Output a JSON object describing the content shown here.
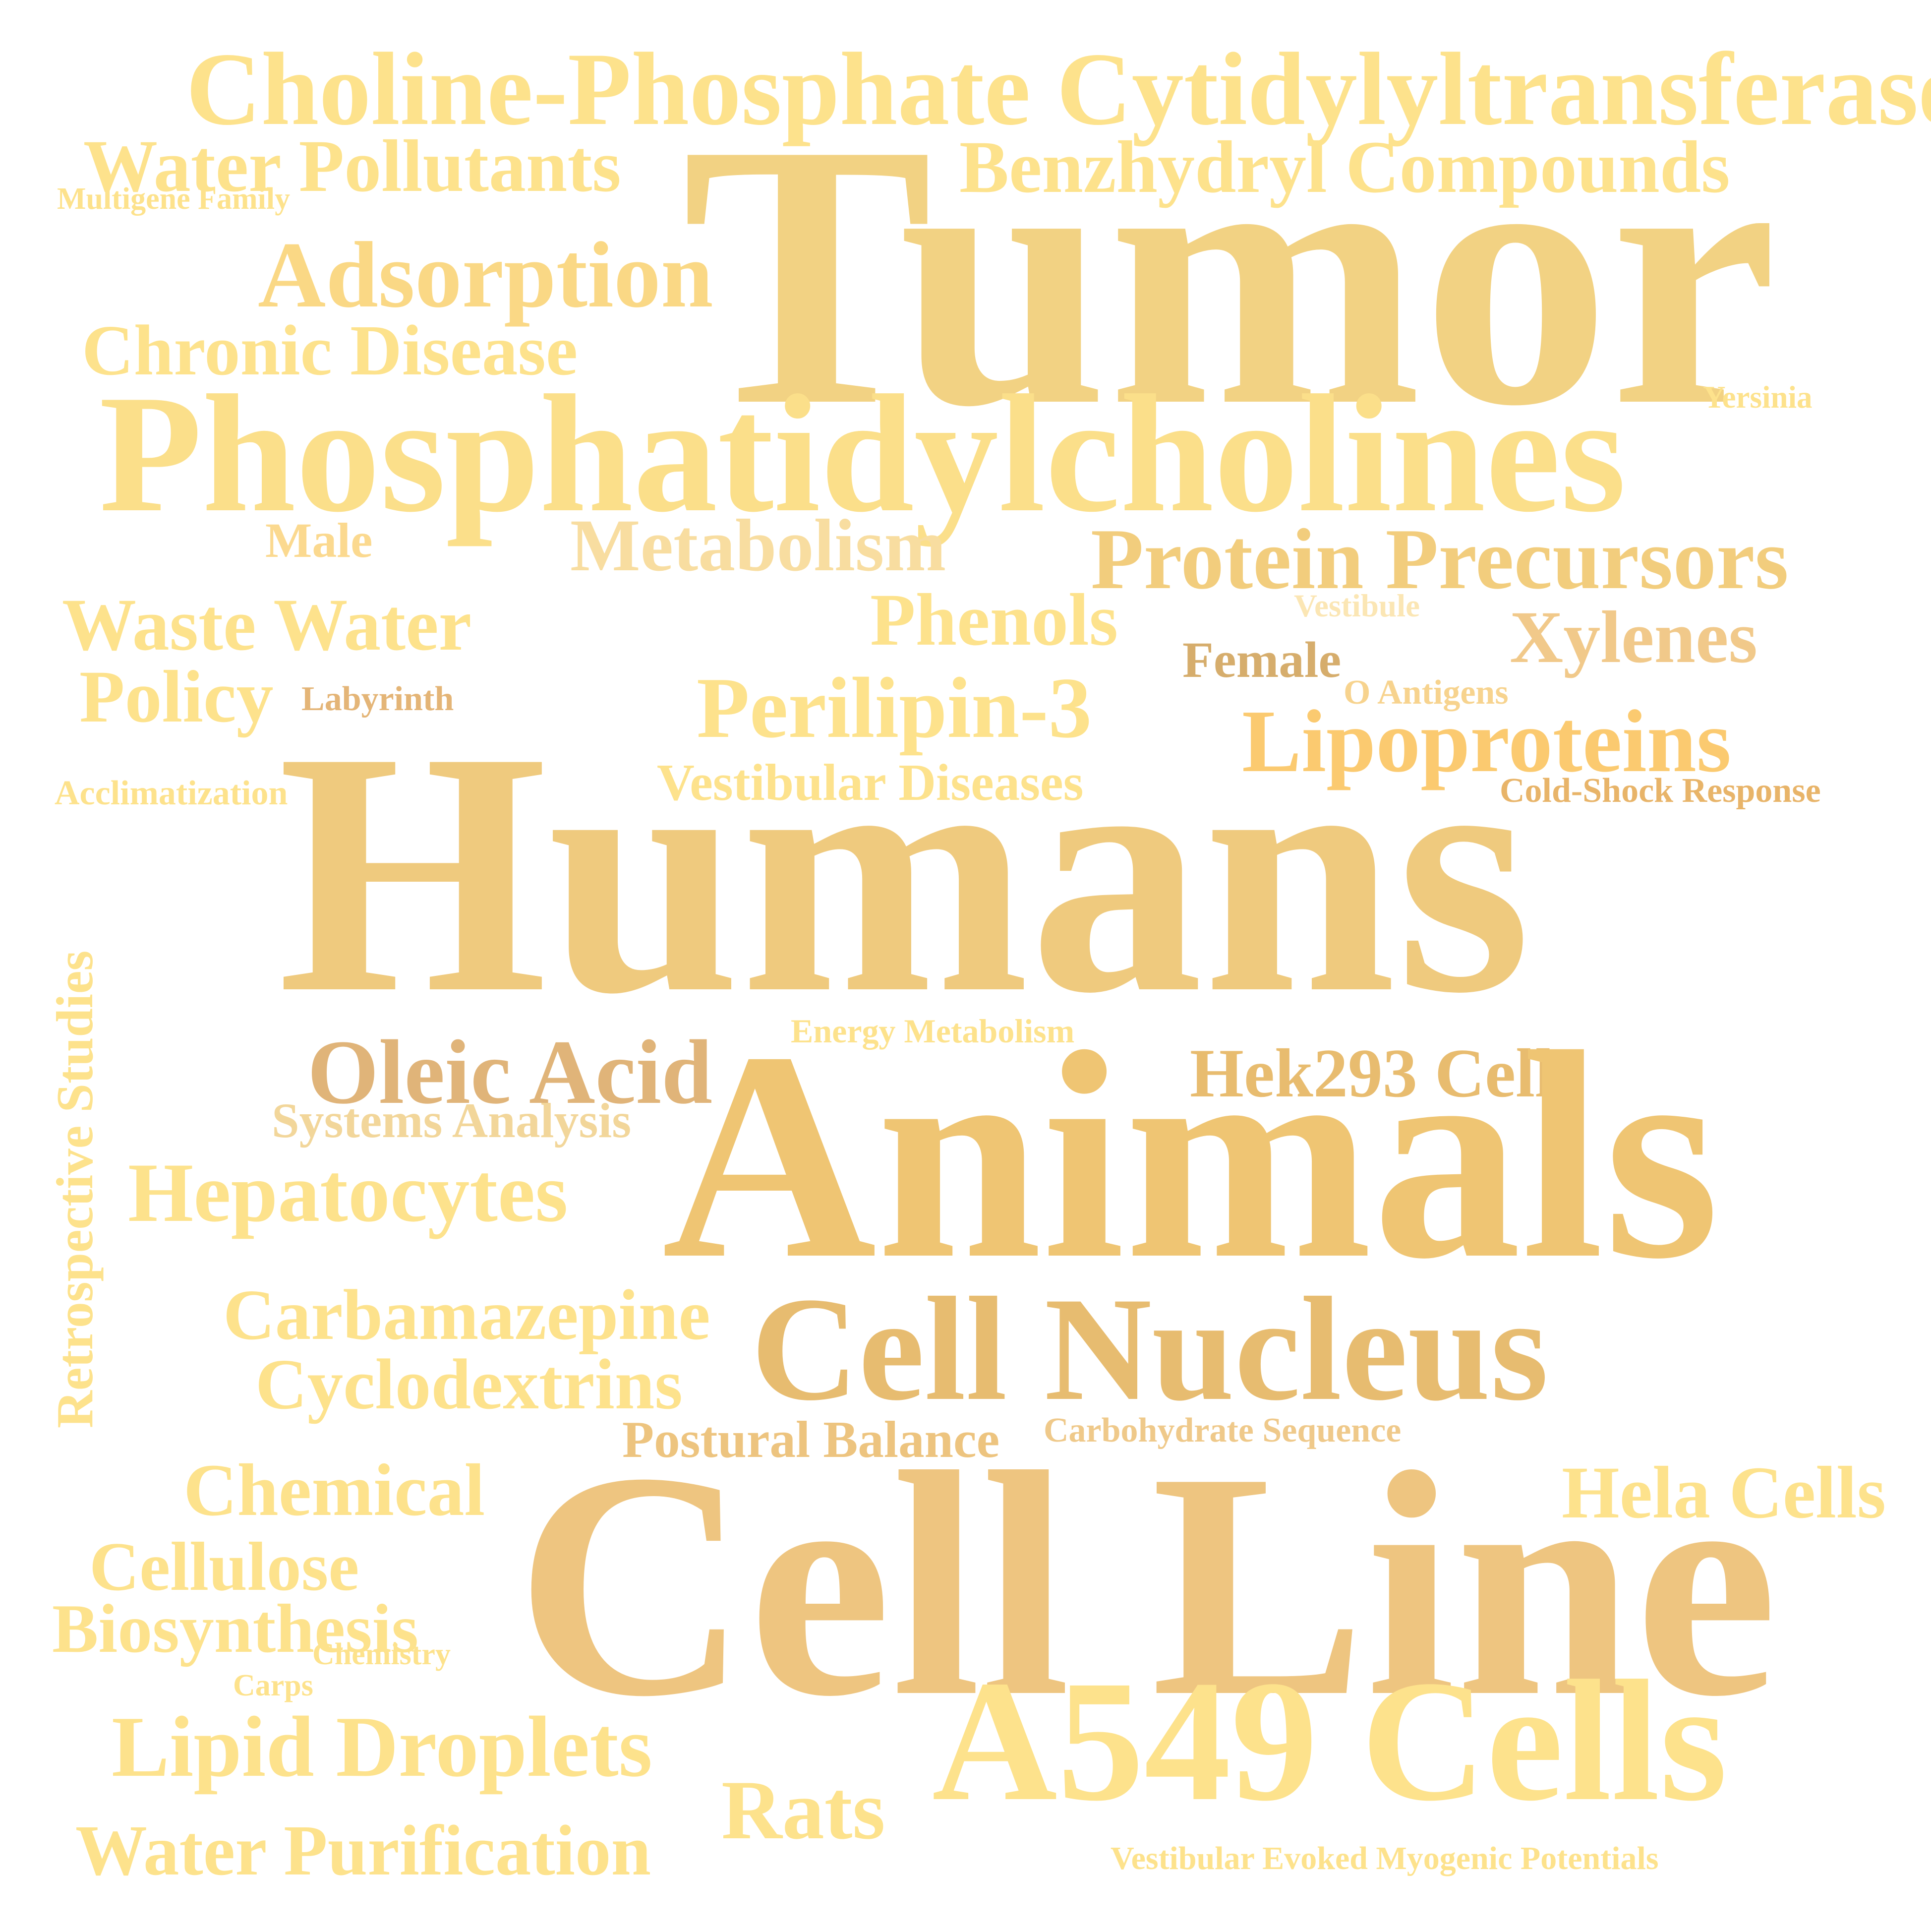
{
  "words": [
    {
      "text": "Choline-Phosphate Cytidylyltransferase",
      "color": "#fde28c"
    },
    {
      "text": "Water Pollutants",
      "color": "#fde28c"
    },
    {
      "text": "Benzhydryl Compounds",
      "color": "#fde28c"
    },
    {
      "text": "Multigene Family",
      "color": "#fde28c"
    },
    {
      "text": "Tumor",
      "color": "#f2d283"
    },
    {
      "text": "Adsorption",
      "color": "#fad885"
    },
    {
      "text": "Chronic Disease",
      "color": "#fde28c"
    },
    {
      "text": "Yersinia",
      "color": "#fde28c"
    },
    {
      "text": "Phosphatidylcholines",
      "color": "#fbdf8a"
    },
    {
      "text": "Male",
      "color": "#fbd98f"
    },
    {
      "text": "Metabolism",
      "color": "#f8dda0"
    },
    {
      "text": "Protein Precursors",
      "color": "#f2cd7d"
    },
    {
      "text": "Waste Water",
      "color": "#fde28c"
    },
    {
      "text": "Phenols",
      "color": "#fde28c"
    },
    {
      "text": "Vestibule",
      "color": "#fbe6b4"
    },
    {
      "text": "Xylenes",
      "color": "#f1c98a"
    },
    {
      "text": "Female",
      "color": "#d6ad6c"
    },
    {
      "text": "Policy",
      "color": "#fde28c"
    },
    {
      "text": "Labyrinth",
      "color": "#e4b577"
    },
    {
      "text": "O Antigens",
      "color": "#f7d38e"
    },
    {
      "text": "Perilipin-3",
      "color": "#fde28c"
    },
    {
      "text": "Lipoproteins",
      "color": "#fbca70"
    },
    {
      "text": "Acclimatization",
      "color": "#fde28c"
    },
    {
      "text": "Vestibular Diseases",
      "color": "#fde28c"
    },
    {
      "text": "Cold-Shock Response",
      "color": "#e8b469"
    },
    {
      "text": "Humans",
      "color": "#efca7e"
    },
    {
      "text": "Retrospective Studies",
      "color": "#fde28c"
    },
    {
      "text": "Energy Metabolism",
      "color": "#fde28c"
    },
    {
      "text": "Oleic Acid",
      "color": "#e0b479"
    },
    {
      "text": "Hek293 Cells",
      "color": "#e8bc6f"
    },
    {
      "text": "Systems Analysis",
      "color": "#f2d69a"
    },
    {
      "text": "Animals",
      "color": "#efc573"
    },
    {
      "text": "Hepatocytes",
      "color": "#fde28c"
    },
    {
      "text": "Carbamazepine",
      "color": "#fde28c"
    },
    {
      "text": "Cell Nucleus",
      "color": "#e7bc70"
    },
    {
      "text": "Cyclodextrins",
      "color": "#fde28c"
    },
    {
      "text": "Postural Balance",
      "color": "#edc47f"
    },
    {
      "text": "Carbohydrate Sequence",
      "color": "#efc98a"
    },
    {
      "text": "Chemical",
      "color": "#fde28c"
    },
    {
      "text": "Hela Cells",
      "color": "#fde28c"
    },
    {
      "text": "Cell Line",
      "color": "#eec580"
    },
    {
      "text": "Cellulose",
      "color": "#fde28c"
    },
    {
      "text": "Biosynthesis",
      "color": "#fde28c"
    },
    {
      "text": "Chemistry",
      "color": "#fde28c"
    },
    {
      "text": "Carps",
      "color": "#fde28c"
    },
    {
      "text": "Lipid Droplets",
      "color": "#fde28c"
    },
    {
      "text": "A549 Cells",
      "color": "#fde28c"
    },
    {
      "text": "Rats",
      "color": "#fde28c"
    },
    {
      "text": "Water Purification",
      "color": "#fde28c"
    },
    {
      "text": "Vestibular Evoked Myogenic Potentials",
      "color": "#fde28c"
    }
  ]
}
